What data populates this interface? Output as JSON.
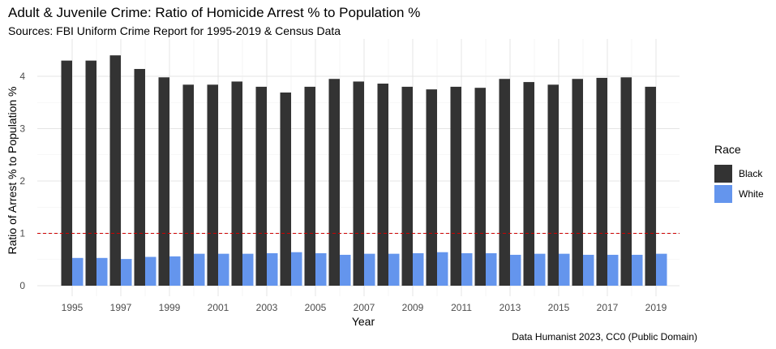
{
  "chart_data": {
    "type": "bar",
    "title": "Adult & Juvenile Crime: Ratio of Homicide Arrest % to Population %",
    "subtitle": "Sources: FBI Uniform Crime Report for 1995-2019 & Census Data",
    "caption": "Data Humanist 2023, CC0 (Public Domain)",
    "xlabel": "Year",
    "ylabel": "Ratio of Arrest % to Population %",
    "ylim": [
      0,
      4.4
    ],
    "yticks": [
      0,
      1,
      2,
      3,
      4
    ],
    "categories": [
      1995,
      1996,
      1997,
      1998,
      1999,
      2000,
      2001,
      2002,
      2003,
      2004,
      2005,
      2006,
      2007,
      2008,
      2009,
      2010,
      2011,
      2012,
      2013,
      2014,
      2015,
      2016,
      2017,
      2018,
      2019
    ],
    "xtick_labels": [
      "1995",
      "1997",
      "1999",
      "2001",
      "2003",
      "2005",
      "2007",
      "2009",
      "2011",
      "2013",
      "2015",
      "2017",
      "2019"
    ],
    "legend": {
      "title": "Race",
      "position": "right"
    },
    "series": [
      {
        "name": "Black",
        "color": "#333333",
        "values": [
          4.3,
          4.3,
          4.4,
          4.14,
          3.98,
          3.84,
          3.84,
          3.9,
          3.8,
          3.69,
          3.8,
          3.95,
          3.9,
          3.86,
          3.8,
          3.75,
          3.8,
          3.78,
          3.95,
          3.89,
          3.84,
          3.95,
          3.97,
          3.98,
          3.8
        ]
      },
      {
        "name": "White",
        "color": "#6495ED",
        "values": [
          0.53,
          0.53,
          0.51,
          0.55,
          0.56,
          0.61,
          0.61,
          0.61,
          0.62,
          0.64,
          0.62,
          0.59,
          0.61,
          0.61,
          0.62,
          0.64,
          0.62,
          0.62,
          0.59,
          0.61,
          0.61,
          0.59,
          0.59,
          0.59,
          0.61
        ]
      }
    ],
    "reference_line": {
      "value": 1,
      "color": "#CC0000",
      "style": "dashed"
    },
    "grid": true
  }
}
